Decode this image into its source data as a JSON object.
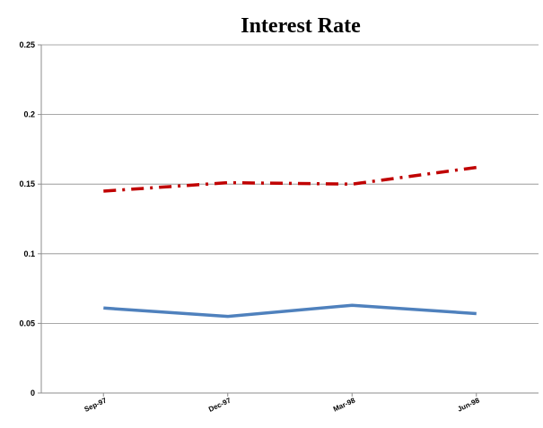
{
  "chart_data": {
    "type": "line",
    "title": "Interest Rate",
    "xlabel": "",
    "ylabel": "",
    "categories": [
      "Sep-97",
      "Dec-97",
      "Mar-98",
      "Jun-98"
    ],
    "ylim": [
      0,
      0.25
    ],
    "yticks": [
      "0",
      "0.05",
      "0.1",
      "0.15",
      "0.2",
      "0.25"
    ],
    "grid": "horizontal",
    "legend": "none",
    "series": [
      {
        "color": "#c00000",
        "style": "dash-dot",
        "values": [
          0.145,
          0.151,
          0.15,
          0.162
        ]
      },
      {
        "color": "#4f81bd",
        "style": "solid",
        "values": [
          0.061,
          0.055,
          0.063,
          0.057
        ]
      }
    ]
  }
}
